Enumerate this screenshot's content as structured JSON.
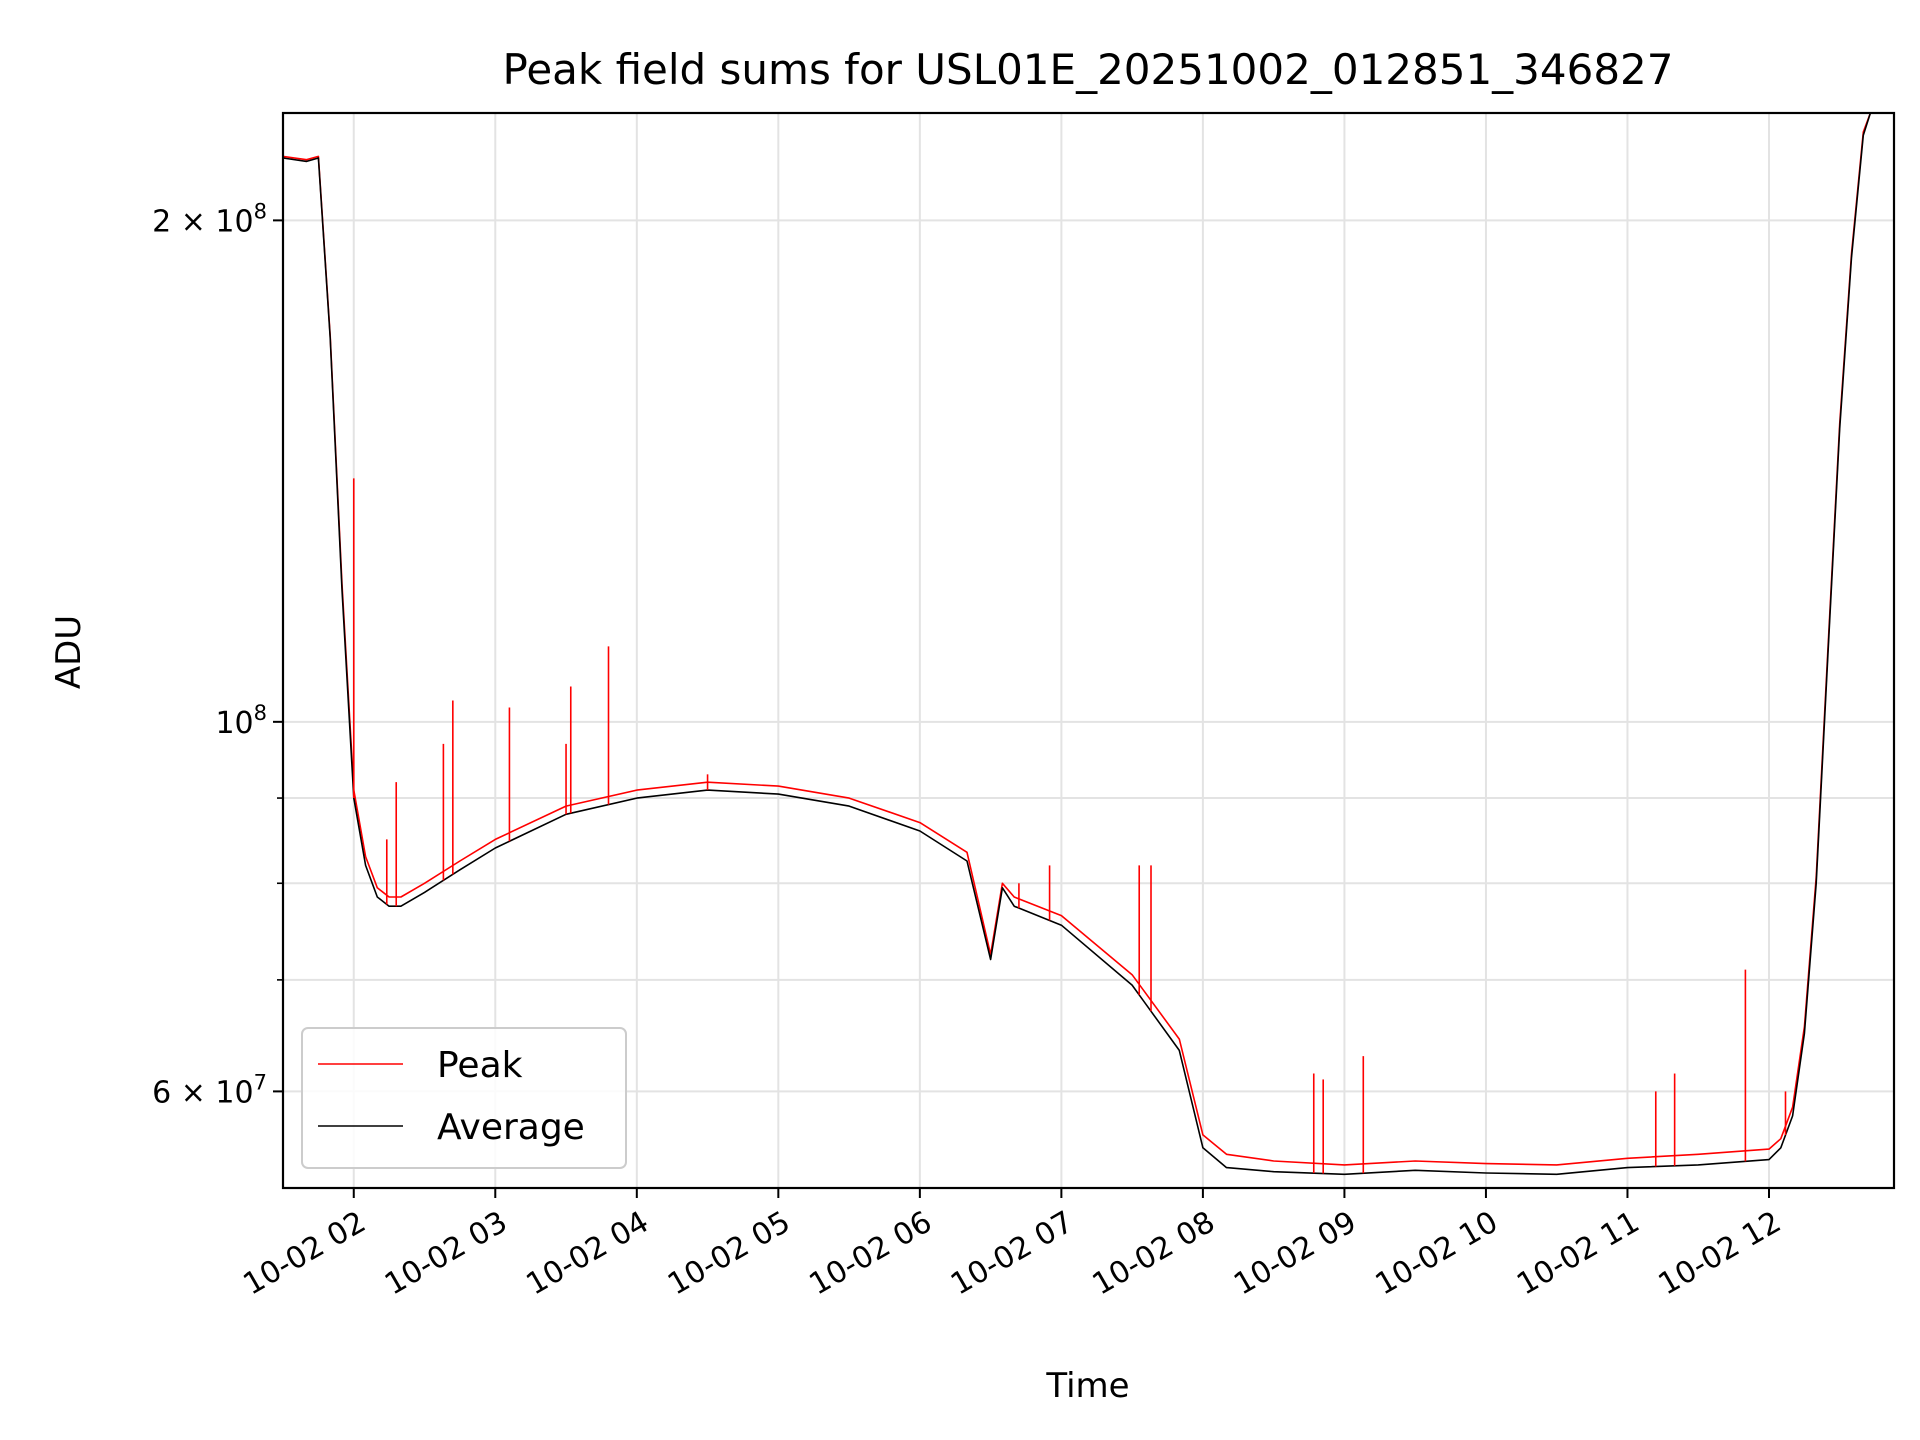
{
  "chart_data": {
    "type": "line",
    "title": "Peak field sums for USL01E_20251002_012851_346827",
    "xlabel": "Time",
    "ylabel": "ADU",
    "yscale": "log",
    "xlim": [
      "2025-10-02 01:30",
      "2025-10-02 12:53"
    ],
    "ylim": [
      52500000,
      232000000
    ],
    "grid": true,
    "legend_position": "lower-left",
    "x_tick_labels": [
      "10-02 02",
      "10-02 03",
      "10-02 04",
      "10-02 05",
      "10-02 06",
      "10-02 07",
      "10-02 08",
      "10-02 09",
      "10-02 10",
      "10-02 11",
      "10-02 12"
    ],
    "x_ticks": [
      "2025-10-02 02:00",
      "2025-10-02 03:00",
      "2025-10-02 04:00",
      "2025-10-02 05:00",
      "2025-10-02 06:00",
      "2025-10-02 07:00",
      "2025-10-02 08:00",
      "2025-10-02 09:00",
      "2025-10-02 10:00",
      "2025-10-02 11:00",
      "2025-10-02 12:00"
    ],
    "y_ticks": [
      {
        "value": 200000000,
        "label_mantissa": "2 × 10",
        "label_exp": "8"
      },
      {
        "value": 100000000,
        "label_mantissa": "10",
        "label_exp": "8"
      },
      {
        "value": 60000000,
        "label_mantissa": "6 × 10",
        "label_exp": "7"
      }
    ],
    "y_minor_ticks": [
      70000000,
      80000000,
      90000000
    ],
    "x": [
      "2025-10-02 01:30",
      "2025-10-02 01:40",
      "2025-10-02 01:45",
      "2025-10-02 01:50",
      "2025-10-02 01:55",
      "2025-10-02 02:00",
      "2025-10-02 02:05",
      "2025-10-02 02:10",
      "2025-10-02 02:15",
      "2025-10-02 02:20",
      "2025-10-02 02:30",
      "2025-10-02 02:45",
      "2025-10-02 03:00",
      "2025-10-02 03:30",
      "2025-10-02 04:00",
      "2025-10-02 04:30",
      "2025-10-02 05:00",
      "2025-10-02 05:30",
      "2025-10-02 06:00",
      "2025-10-02 06:20",
      "2025-10-02 06:30",
      "2025-10-02 06:35",
      "2025-10-02 06:40",
      "2025-10-02 07:00",
      "2025-10-02 07:30",
      "2025-10-02 07:50",
      "2025-10-02 08:00",
      "2025-10-02 08:10",
      "2025-10-02 08:30",
      "2025-10-02 09:00",
      "2025-10-02 09:30",
      "2025-10-02 10:00",
      "2025-10-02 10:30",
      "2025-10-02 11:00",
      "2025-10-02 11:30",
      "2025-10-02 12:00",
      "2025-10-02 12:05",
      "2025-10-02 12:10",
      "2025-10-02 12:15",
      "2025-10-02 12:20",
      "2025-10-02 12:25",
      "2025-10-02 12:30",
      "2025-10-02 12:35",
      "2025-10-02 12:40",
      "2025-10-02 12:43"
    ],
    "series": [
      {
        "name": "Average",
        "color": "#000000",
        "values": [
          218000000,
          217000000,
          218000000,
          170000000,
          120000000,
          90000000,
          82000000,
          78500000,
          77500000,
          77500000,
          79000000,
          81500000,
          84000000,
          88000000,
          90000000,
          91000000,
          90500000,
          89000000,
          86000000,
          82500000,
          72000000,
          79500000,
          77500000,
          75500000,
          69500000,
          63500000,
          55500000,
          54000000,
          53700000,
          53500000,
          53800000,
          53600000,
          53500000,
          54000000,
          54200000,
          54600000,
          55500000,
          58000000,
          65000000,
          80000000,
          110000000,
          150000000,
          190000000,
          225000000,
          232000000
        ]
      },
      {
        "name": "Peak",
        "color": "#ff0000",
        "values": [
          218500000,
          217500000,
          218500000,
          170500000,
          121000000,
          91000000,
          83000000,
          79500000,
          78500000,
          78500000,
          80000000,
          82500000,
          85000000,
          89000000,
          91000000,
          92000000,
          91500000,
          90000000,
          87000000,
          83500000,
          72500000,
          80000000,
          78500000,
          76500000,
          70500000,
          64500000,
          56500000,
          55000000,
          54500000,
          54200000,
          54500000,
          54300000,
          54200000,
          54700000,
          55000000,
          55400000,
          56200000,
          58700000,
          65600000,
          80700000,
          110800000,
          151000000,
          191000000,
          226000000,
          232000000
        ]
      }
    ],
    "peak_spikes": [
      {
        "x": "2025-10-02 02:00",
        "y": 140000000
      },
      {
        "x": "2025-10-02 02:14",
        "y": 85000000
      },
      {
        "x": "2025-10-02 02:18",
        "y": 92000000
      },
      {
        "x": "2025-10-02 02:38",
        "y": 97000000
      },
      {
        "x": "2025-10-02 02:42",
        "y": 103000000
      },
      {
        "x": "2025-10-02 03:06",
        "y": 102000000
      },
      {
        "x": "2025-10-02 03:30",
        "y": 97000000
      },
      {
        "x": "2025-10-02 03:32",
        "y": 105000000
      },
      {
        "x": "2025-10-02 03:48",
        "y": 111000000
      },
      {
        "x": "2025-10-02 04:30",
        "y": 93000000
      },
      {
        "x": "2025-10-02 06:42",
        "y": 80000000
      },
      {
        "x": "2025-10-02 06:55",
        "y": 82000000
      },
      {
        "x": "2025-10-02 07:33",
        "y": 82000000
      },
      {
        "x": "2025-10-02 07:38",
        "y": 82000000
      },
      {
        "x": "2025-10-02 08:47",
        "y": 61500000
      },
      {
        "x": "2025-10-02 08:51",
        "y": 61000000
      },
      {
        "x": "2025-10-02 09:08",
        "y": 63000000
      },
      {
        "x": "2025-10-02 11:12",
        "y": 60000000
      },
      {
        "x": "2025-10-02 11:20",
        "y": 61500000
      },
      {
        "x": "2025-10-02 11:50",
        "y": 71000000
      },
      {
        "x": "2025-10-02 12:07",
        "y": 60000000
      }
    ]
  }
}
